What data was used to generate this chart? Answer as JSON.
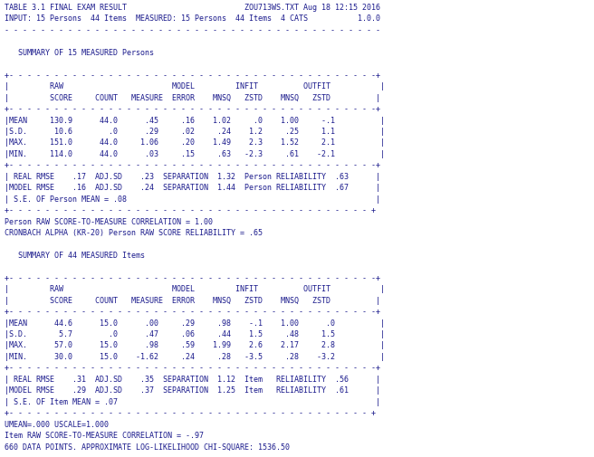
{
  "bg_color": "#ffffff",
  "text_color": "#1a1a8c",
  "font_size": 6.0,
  "figsize": [
    6.56,
    5.06
  ],
  "dpi": 100,
  "lines": [
    "TABLE 3.1 FINAL EXAM RESULT                          ZOU713WS.TXT Aug 18 12:15 2016",
    "INPUT: 15 Persons  44 Items  MEASURED: 15 Persons  44 Items  4 CATS           1.0.0",
    "- - - - - - - - - - - - - - - - - - - - - - - - - - - - - - - - - - - - - - - - - -",
    "",
    "   SUMMARY OF 15 MEASURED Persons",
    "",
    "+- - - - - - - - - - - - - - - - - - - - - - - - - - - - - - - - - - - - - - - - -+",
    "|         RAW                        MODEL         INFIT          OUTFIT           |",
    "|         SCORE     COUNT   MEASURE  ERROR    MNSQ   ZSTD    MNSQ   ZSTD          |",
    "+- - - - - - - - - - - - - - - - - - - - - - - - - - - - - - - - - - - - - - - - -+",
    "|MEAN     130.9      44.0      .45     .16    1.02     .0    1.00     -.1          |",
    "|S.D.      10.6        .0      .29     .02     .24    1.2     .25     1.1          |",
    "|MAX.     151.0      44.0     1.06     .20    1.49    2.3    1.52     2.1          |",
    "|MIN.     114.0      44.0      .03     .15     .63   -2.3     .61    -2.1          |",
    "+- - - - - - - - - - - - - - - - - - - - - - - - - - - - - - - - - - - - - - - - -+",
    "| REAL RMSE    .17  ADJ.SD    .23  SEPARATION  1.32  Person RELIABILITY  .63      |",
    "|MODEL RMSE    .16  ADJ.SD    .24  SEPARATION  1.44  Person RELIABILITY  .67      |",
    "| S.E. OF Person MEAN = .08                                                       |",
    "+- - - - - - - - - - - - - - - - - - - - - - - - - - - - - - - - - - - - - - - - +",
    "Person RAW SCORE-TO-MEASURE CORRELATION = 1.00",
    "CRONBACH ALPHA (KR-20) Person RAW SCORE RELIABILITY = .65",
    "",
    "   SUMMARY OF 44 MEASURED Items",
    "",
    "+- - - - - - - - - - - - - - - - - - - - - - - - - - - - - - - - - - - - - - - - -+",
    "|         RAW                        MODEL         INFIT          OUTFIT           |",
    "|         SCORE     COUNT   MEASURE  ERROR    MNSQ   ZSTD    MNSQ   ZSTD          |",
    "+- - - - - - - - - - - - - - - - - - - - - - - - - - - - - - - - - - - - - - - - -+",
    "|MEAN      44.6      15.0      .00     .29     .98    -.1    1.00      .0          |",
    "|S.D.       5.7        .0      .47     .06     .44    1.5     .48     1.5          |",
    "|MAX.      57.0      15.0      .98     .59    1.99    2.6    2.17     2.8          |",
    "|MIN.      30.0      15.0    -1.62     .24     .28   -3.5     .28    -3.2          |",
    "+- - - - - - - - - - - - - - - - - - - - - - - - - - - - - - - - - - - - - - - - -+",
    "| REAL RMSE    .31  ADJ.SD    .35  SEPARATION  1.12  Item   RELIABILITY  .56      |",
    "|MODEL RMSE    .29  ADJ.SD    .37  SEPARATION  1.25  Item   RELIABILITY  .61      |",
    "| S.E. OF Item MEAN = .07                                                         |",
    "+- - - - - - - - - - - - - - - - - - - - - - - - - - - - - - - - - - - - - - - - +",
    "UMEAN=.000 USCALE=1.000",
    "Item RAW SCORE-TO-MEASURE CORRELATION = -.97",
    "660 DATA POINTS. APPROXIMATE LOG-LIKELIHOOD CHI-SQUARE: 1536.50"
  ]
}
